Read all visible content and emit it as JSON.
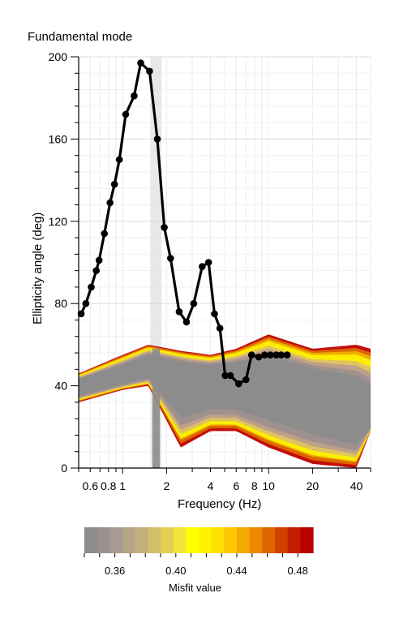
{
  "chart_data": {
    "type": "line",
    "title": "Fundamental mode",
    "xlabel": "Frequency (Hz)",
    "ylabel": "Ellipticity angle (deg)",
    "xscale": "log",
    "xlim": [
      0.5,
      50
    ],
    "ylim": [
      0,
      200
    ],
    "x_tick_labels": [
      {
        "value": 0.6,
        "label": "0.6"
      },
      {
        "value": 0.8,
        "label": "0.8"
      },
      {
        "value": 1,
        "label": "1"
      },
      {
        "value": 2,
        "label": "2"
      },
      {
        "value": 4,
        "label": "4"
      },
      {
        "value": 6,
        "label": "6"
      },
      {
        "value": 8,
        "label": "8"
      },
      {
        "value": 10,
        "label": "10"
      },
      {
        "value": 20,
        "label": "20"
      },
      {
        "value": 40,
        "label": "40"
      }
    ],
    "y_ticks": [
      0,
      40,
      80,
      120,
      160,
      200
    ],
    "grid": true,
    "shaded_band": [
      1.55,
      1.85
    ],
    "series": [
      {
        "color": "#000000",
        "x": [
          0.52,
          0.56,
          0.61,
          0.66,
          0.69,
          0.75,
          0.82,
          0.88,
          0.95,
          1.05,
          1.2,
          1.33,
          1.53,
          1.73,
          1.93,
          2.13,
          2.44,
          2.74,
          3.07,
          3.51,
          3.88,
          4.26,
          4.64,
          5.04,
          5.47,
          6.24,
          7.01,
          7.65,
          8.56,
          9.39,
          10.3,
          11.3,
          12.2,
          13.4
        ],
        "y": [
          75,
          80,
          88,
          96,
          101,
          114,
          129,
          138,
          150,
          172,
          181,
          197,
          193,
          160,
          117,
          102,
          76,
          71,
          80,
          98,
          100,
          75,
          68,
          45,
          45,
          41,
          43,
          55,
          54,
          55,
          55,
          55,
          55,
          55
        ]
      }
    ],
    "inversion_curves": {
      "description_count": 3,
      "misfit_colors": [
        "#888888",
        "#ffff00",
        "#c00000"
      ],
      "envelope_low": {
        "x": [
          0.5,
          1.0,
          1.5,
          2.5,
          4.0,
          6.0,
          10.0,
          20.0,
          40.0,
          50.0
        ],
        "y": [
          32,
          38,
          40,
          10,
          18,
          18,
          10,
          2,
          0,
          18
        ]
      },
      "envelope_high": {
        "x": [
          0.5,
          1.0,
          1.5,
          2.5,
          4.0,
          6.0,
          10.0,
          20.0,
          40.0,
          50.0
        ],
        "y": [
          46,
          55,
          60,
          57,
          55,
          58,
          65,
          58,
          60,
          58
        ]
      },
      "median": {
        "x": [
          0.5,
          1.0,
          1.5,
          2.0,
          3.0,
          4.0,
          6.0,
          10.0,
          20.0,
          40.0,
          50.0
        ],
        "y": [
          40,
          45,
          50,
          48,
          45,
          45,
          44,
          43,
          38,
          28,
          22
        ]
      }
    },
    "colorbar": {
      "label": "Misfit value",
      "ticks": [
        "0.36",
        "0.40",
        "0.44",
        "0.48"
      ],
      "tick_values": [
        0.36,
        0.4,
        0.44,
        0.48
      ],
      "range": [
        0.34,
        0.49
      ],
      "colors": [
        "#8c8c8c",
        "#999090",
        "#a89a90",
        "#b6a487",
        "#c4b07a",
        "#d3be6a",
        "#e2cd55",
        "#f2e43a",
        "#ffff00",
        "#fff200",
        "#ffe000",
        "#fbc700",
        "#f5aa00",
        "#ec8800",
        "#e06400",
        "#d24000",
        "#c41c00",
        "#b80000"
      ]
    }
  }
}
